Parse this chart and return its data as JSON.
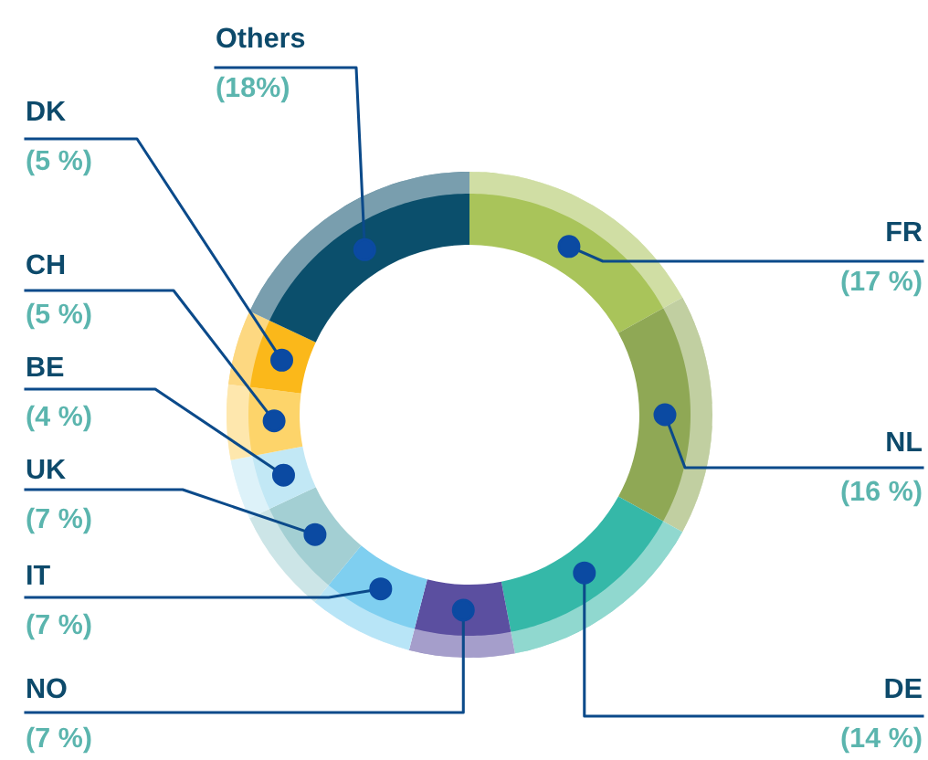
{
  "chart_data": {
    "type": "donut",
    "categories": [
      "FR",
      "NL",
      "DE",
      "NO",
      "IT",
      "UK",
      "BE",
      "CH",
      "DK",
      "Others"
    ],
    "values": [
      17,
      16,
      14,
      7,
      7,
      7,
      4,
      5,
      5,
      18
    ],
    "colors": [
      "#a9c45a",
      "#8fa855",
      "#35b8a8",
      "#5b4fa0",
      "#7fcff0",
      "#a3cfd3",
      "#c2e8f5",
      "#fdd46a",
      "#fbb81a",
      "#0b4f6c"
    ],
    "value_labels": [
      "(17 %)",
      "(16 %)",
      "(14 %)",
      "(7 %)",
      "(7 %)",
      "(7 %)",
      "(4 %)",
      "(5 %)",
      "(5 %)",
      "(18%)"
    ]
  }
}
